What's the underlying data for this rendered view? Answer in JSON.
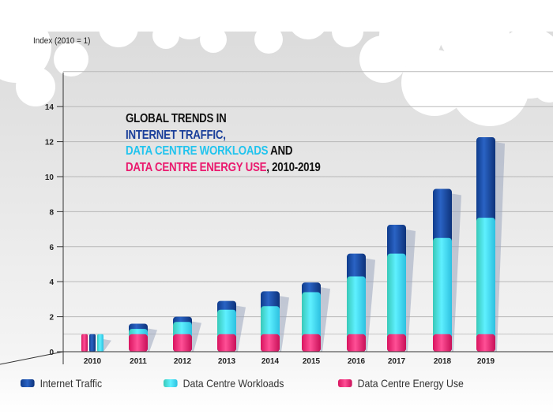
{
  "chart_data": {
    "type": "bar",
    "title_lines": [
      {
        "parts": [
          {
            "text": "GLOBAL TRENDS IN",
            "color": "#111111"
          }
        ]
      },
      {
        "parts": [
          {
            "text": "INTERNET TRAFFIC,",
            "color": "#1a3f9a"
          }
        ]
      },
      {
        "parts": [
          {
            "text": "DATA CENTRE WORKLOADS",
            "color": "#22c4ee"
          },
          {
            "text": " AND",
            "color": "#111111"
          }
        ]
      },
      {
        "parts": [
          {
            "text": "DATA CENTRE ENERGY USE",
            "color": "#ea1a6e"
          },
          {
            "text": ", 2010-2019",
            "color": "#111111"
          }
        ]
      }
    ],
    "ylabel": "Index (2010 = 1)",
    "xlabel": "",
    "ylim": [
      0,
      16
    ],
    "yticks": [
      0,
      2,
      4,
      6,
      8,
      10,
      12,
      14
    ],
    "grid": true,
    "legend_placement": "bottom",
    "categories": [
      "2010",
      "2011",
      "2012",
      "2013",
      "2014",
      "2015",
      "2016",
      "2017",
      "2018",
      "2019"
    ],
    "series": [
      {
        "name": "Internet Traffic",
        "color": "#1b4fa8",
        "values": [
          1.0,
          1.6,
          2.0,
          2.9,
          3.45,
          3.95,
          5.6,
          7.25,
          9.3,
          12.25
        ]
      },
      {
        "name": "Data Centre Workloads",
        "color": "#3fd3ec",
        "values": [
          1.0,
          1.3,
          1.7,
          2.4,
          2.6,
          3.4,
          4.3,
          5.6,
          6.5,
          7.65
        ]
      },
      {
        "name": "Data Centre Energy Use",
        "color": "#e8206f",
        "values": [
          1.0,
          1.0,
          1.0,
          1.0,
          1.0,
          1.0,
          1.0,
          1.0,
          1.0,
          1.0
        ]
      }
    ]
  }
}
